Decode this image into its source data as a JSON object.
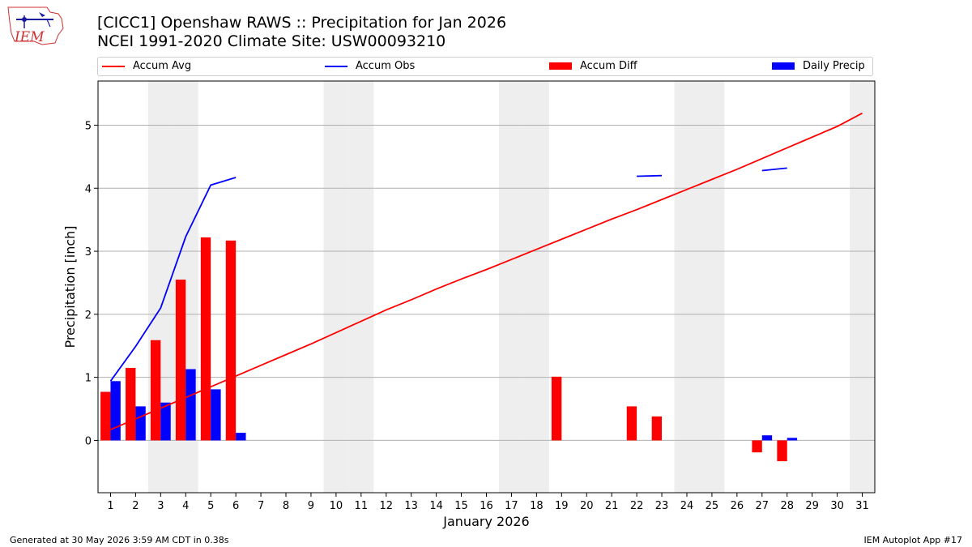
{
  "header": {
    "title_line1": "[CICC1] Openshaw RAWS :: Precipitation for Jan 2026",
    "title_line2": "NCEI 1991-2020 Climate Site: USW00093210",
    "logo_text": "IEM"
  },
  "footer": {
    "left": "Generated at 30 May 2026 3:59 AM CDT in 0.38s",
    "right": "IEM Autoplot App #17"
  },
  "colors": {
    "accum_avg": "#ff0000",
    "accum_obs": "#0000ff",
    "accum_diff": "#ff0000",
    "daily_precip": "#0000ff",
    "weekend_shade": "#eeeeee",
    "grid": "#b0b0b0"
  },
  "chart_data": {
    "type": "bar",
    "xlabel": "January 2026",
    "ylabel": "Precipitation [inch]",
    "xlim": [
      0.5,
      31.5
    ],
    "ylim": [
      -0.83,
      5.7
    ],
    "yticks": [
      0,
      1,
      2,
      3,
      4,
      5
    ],
    "grid": "horizontal",
    "legend_placement": "top",
    "x": [
      1,
      2,
      3,
      4,
      5,
      6,
      7,
      8,
      9,
      10,
      11,
      12,
      13,
      14,
      15,
      16,
      17,
      18,
      19,
      20,
      21,
      22,
      23,
      24,
      25,
      26,
      27,
      28,
      29,
      30,
      31
    ],
    "weekend_days": [
      3,
      4,
      10,
      11,
      17,
      18,
      24,
      25,
      31
    ],
    "series": [
      {
        "name": "Accum Avg",
        "kind": "line",
        "values": [
          0.17,
          0.34,
          0.51,
          0.68,
          0.85,
          1.02,
          1.19,
          1.36,
          1.53,
          1.71,
          1.89,
          2.07,
          2.23,
          2.4,
          2.56,
          2.71,
          2.87,
          3.03,
          3.19,
          3.35,
          3.51,
          3.66,
          3.82,
          3.98,
          4.14,
          4.3,
          4.47,
          4.64,
          4.81,
          4.98,
          5.19
        ]
      },
      {
        "name": "Accum Obs",
        "kind": "line",
        "values": [
          0.94,
          1.49,
          2.1,
          3.23,
          4.05,
          4.17,
          null,
          null,
          null,
          null,
          null,
          null,
          null,
          null,
          null,
          null,
          null,
          null,
          null,
          null,
          null,
          4.19,
          4.2,
          null,
          null,
          null,
          4.28,
          4.32,
          null,
          null,
          null
        ]
      },
      {
        "name": "Accum Diff",
        "kind": "bar",
        "values": [
          0.77,
          1.15,
          1.59,
          2.55,
          3.22,
          3.17,
          null,
          null,
          null,
          null,
          null,
          null,
          null,
          null,
          null,
          null,
          null,
          null,
          1.01,
          null,
          null,
          0.54,
          0.38,
          null,
          null,
          null,
          -0.19,
          -0.33,
          null,
          null,
          null
        ]
      },
      {
        "name": "Daily Precip",
        "kind": "bar",
        "values": [
          0.94,
          0.54,
          0.6,
          1.13,
          0.81,
          0.12,
          null,
          null,
          null,
          null,
          null,
          null,
          null,
          null,
          null,
          null,
          null,
          null,
          null,
          null,
          null,
          null,
          null,
          null,
          null,
          null,
          0.08,
          0.04,
          null,
          null,
          null
        ]
      }
    ]
  }
}
